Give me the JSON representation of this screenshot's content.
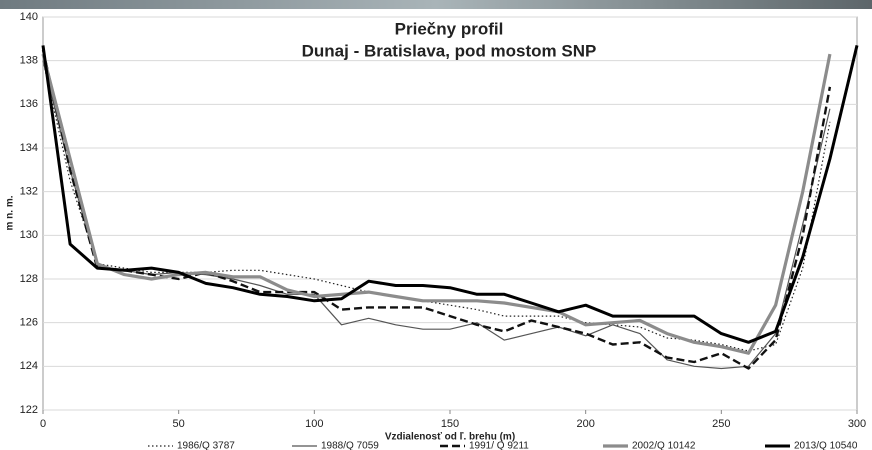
{
  "chart_data": {
    "type": "line",
    "title": "Priečny profil",
    "subtitle": "Dunaj - Bratislava, pod mostom SNP",
    "xlabel": "Vzdialenosť od ľ. brehu (m)",
    "ylabel": "m n. m.",
    "x": [
      0,
      10,
      20,
      30,
      40,
      50,
      60,
      70,
      80,
      90,
      100,
      110,
      120,
      130,
      140,
      150,
      160,
      170,
      180,
      190,
      200,
      210,
      220,
      230,
      240,
      250,
      260,
      270,
      280,
      290,
      300
    ],
    "series": [
      {
        "name": "1986/Q 3787",
        "color": "#222222",
        "style": "dotted",
        "width": 1.2,
        "values": [
          138,
          132.5,
          128.7,
          128.5,
          128.3,
          128.3,
          128.3,
          128.4,
          128.4,
          128.2,
          128.0,
          127.7,
          127.4,
          127.2,
          127.0,
          126.8,
          126.6,
          126.3,
          126.3,
          126.3,
          126.0,
          125.9,
          125.8,
          125.3,
          125.2,
          125.0,
          124.7,
          125.0,
          128.5,
          135.2,
          null
        ]
      },
      {
        "name": "1988/Q 7059",
        "color": "#555555",
        "style": "solid",
        "width": 1.2,
        "values": [
          138,
          133,
          128.6,
          128.4,
          128.2,
          128.3,
          128.2,
          128.0,
          127.7,
          127.3,
          127.3,
          125.9,
          126.2,
          125.9,
          125.7,
          125.7,
          126.0,
          125.2,
          125.5,
          125.8,
          125.4,
          125.9,
          125.5,
          124.3,
          124.0,
          123.9,
          124.0,
          125.5,
          130.5,
          135.8,
          null
        ]
      },
      {
        "name": "1991/ Q 9211",
        "color": "#111111",
        "style": "dashed",
        "width": 2.4,
        "values": [
          138.5,
          133,
          128.5,
          128.4,
          128.2,
          128.0,
          128.3,
          127.9,
          127.4,
          127.4,
          127.4,
          126.6,
          126.7,
          126.7,
          126.7,
          126.3,
          125.9,
          125.6,
          126.1,
          125.8,
          125.5,
          125.0,
          125.1,
          124.4,
          124.2,
          124.6,
          123.9,
          125.2,
          130,
          136.8,
          null
        ]
      },
      {
        "name": "2002/Q 10142",
        "color": "#8c8c8c",
        "style": "solid",
        "width": 3.2,
        "values": [
          138.3,
          133.5,
          128.7,
          128.2,
          128.0,
          128.2,
          128.3,
          128.1,
          128.1,
          127.5,
          127.2,
          127.3,
          127.4,
          127.2,
          127.0,
          127.0,
          127.0,
          126.9,
          126.7,
          126.5,
          125.9,
          126.0,
          126.1,
          125.5,
          125.1,
          124.9,
          124.6,
          126.8,
          132,
          138.3,
          null
        ]
      },
      {
        "name": "2013/Q 10540",
        "color": "#000000",
        "style": "solid",
        "width": 3,
        "values": [
          138.7,
          129.6,
          128.5,
          128.4,
          128.5,
          128.3,
          127.8,
          127.6,
          127.3,
          127.2,
          127.0,
          127.1,
          127.9,
          127.7,
          127.7,
          127.6,
          127.3,
          127.3,
          126.9,
          126.5,
          126.8,
          126.3,
          126.3,
          126.3,
          126.3,
          125.5,
          125.1,
          125.6,
          129,
          133.5,
          138.7
        ]
      }
    ],
    "xlim": [
      0,
      300
    ],
    "xticks": [
      0,
      50,
      100,
      150,
      200,
      250,
      300
    ],
    "ylim": [
      122,
      140
    ],
    "yticks": [
      122,
      124,
      126,
      128,
      130,
      132,
      134,
      136,
      138,
      140
    ],
    "grid": true,
    "legend": "bottom"
  }
}
